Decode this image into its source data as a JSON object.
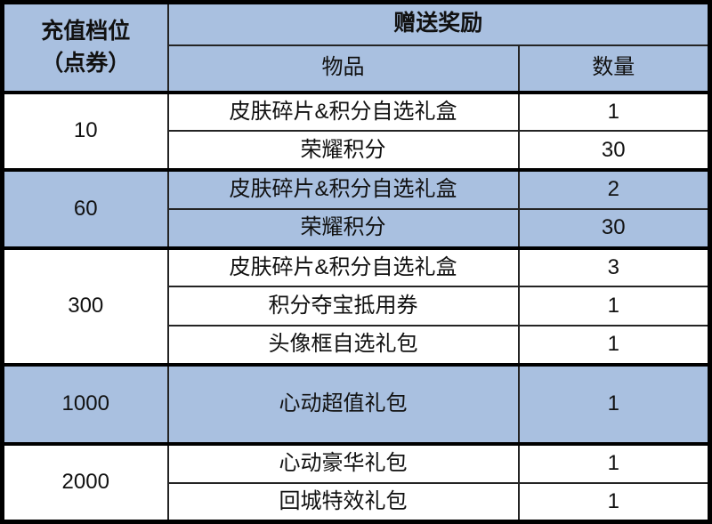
{
  "table": {
    "header": {
      "tier_line1": "充值档位",
      "tier_line2": "（点券）",
      "reward_label": "赠送奖励",
      "item_label": "物品",
      "qty_label": "数量"
    },
    "groups": [
      {
        "tier": "10",
        "shaded": false,
        "rows": [
          {
            "item": "皮肤碎片&积分自选礼盒",
            "qty": "1"
          },
          {
            "item": "荣耀积分",
            "qty": "30"
          }
        ]
      },
      {
        "tier": "60",
        "shaded": true,
        "rows": [
          {
            "item": "皮肤碎片&积分自选礼盒",
            "qty": "2"
          },
          {
            "item": "荣耀积分",
            "qty": "30"
          }
        ]
      },
      {
        "tier": "300",
        "shaded": false,
        "rows": [
          {
            "item": "皮肤碎片&积分自选礼盒",
            "qty": "3"
          },
          {
            "item": "积分夺宝抵用券",
            "qty": "1"
          },
          {
            "item": "头像框自选礼包",
            "qty": "1"
          }
        ]
      },
      {
        "tier": "1000",
        "shaded": true,
        "rows": [
          {
            "item": "心动超值礼包",
            "qty": "1"
          }
        ]
      },
      {
        "tier": "2000",
        "shaded": false,
        "rows": [
          {
            "item": "心动豪华礼包",
            "qty": "1"
          },
          {
            "item": "回城特效礼包",
            "qty": "1"
          }
        ]
      }
    ],
    "colors": {
      "shade_blue": "#a9c0e0",
      "border_black": "#000000",
      "text": "#111111",
      "row_white": "#ffffff"
    }
  }
}
